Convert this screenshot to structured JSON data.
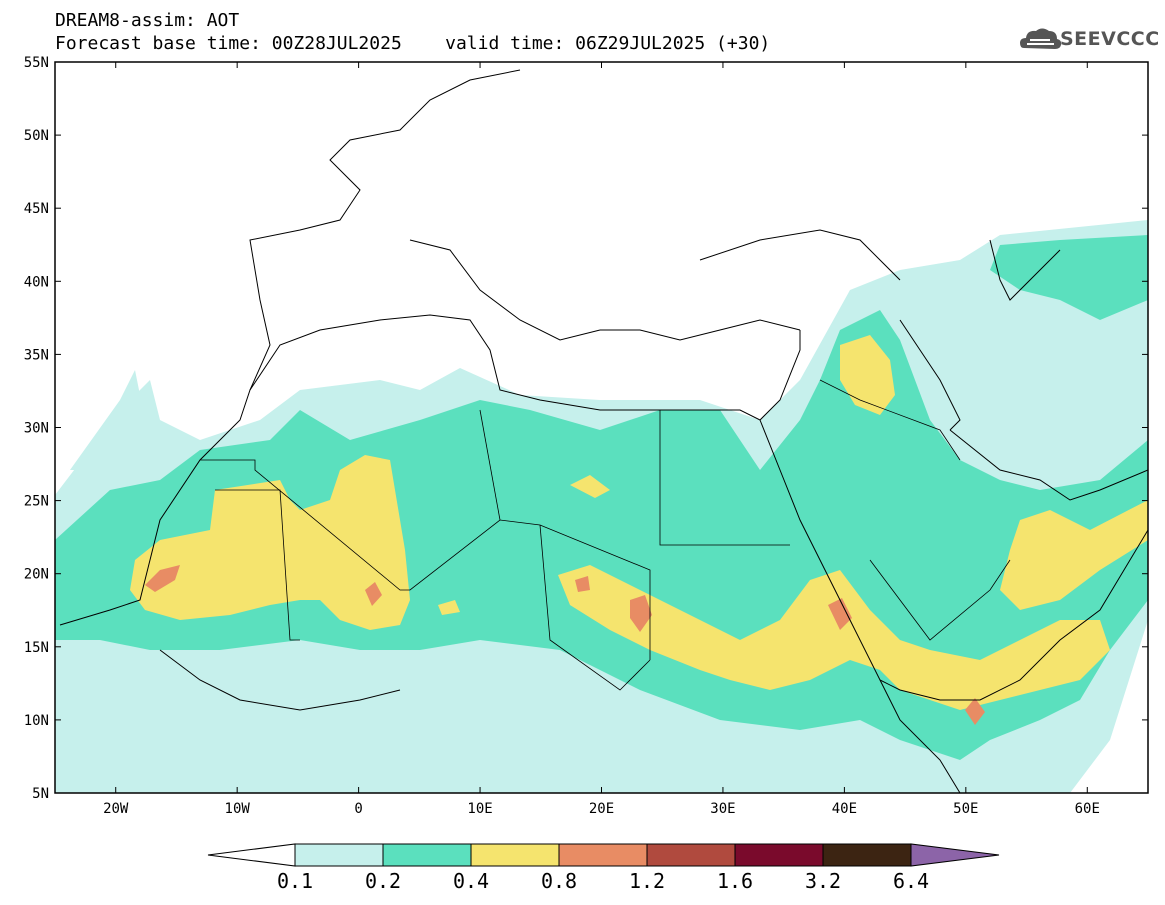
{
  "header": {
    "title": "DREAM8-assim: AOT",
    "subtitle": "Forecast base time: 00Z28JUL2025    valid time: 06Z29JUL2025 (+30)"
  },
  "logo": {
    "text": "SEEVCCC",
    "icon": "cloud-icon"
  },
  "map": {
    "lon_range": [
      -25,
      65
    ],
    "lat_range": [
      5,
      55
    ],
    "lat_ticks": [
      "5N",
      "10N",
      "15N",
      "20N",
      "25N",
      "30N",
      "35N",
      "40N",
      "45N",
      "50N",
      "55N"
    ],
    "lon_ticks": [
      "20W",
      "10W",
      "0",
      "10E",
      "20E",
      "30E",
      "40E",
      "50E",
      "60E"
    ]
  },
  "colorbar": {
    "levels": [
      "0.1",
      "0.2",
      "0.4",
      "0.8",
      "1.2",
      "1.6",
      "3.2",
      "6.4"
    ],
    "colors": [
      "#c6f0ec",
      "#5be0be",
      "#f5e46e",
      "#e88c64",
      "#b04a3e",
      "#7a0a2c",
      "#3c2412",
      "#8c64a8"
    ],
    "under_color": "#ffffff"
  }
}
